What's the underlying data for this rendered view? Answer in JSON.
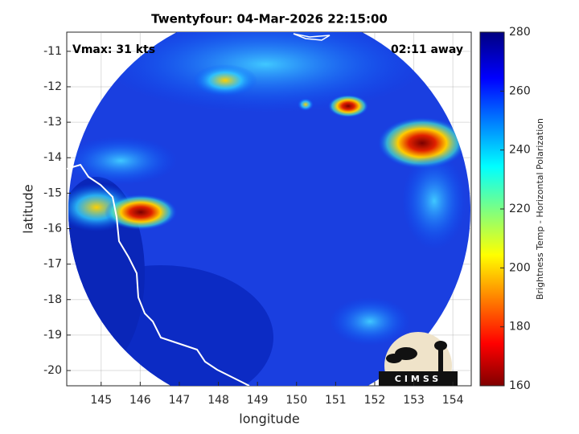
{
  "chart_data": {
    "type": "map",
    "title": "Twentyfour: 04-Mar-2026 22:15:00",
    "annotations": [
      "Vmax: 31 kts",
      "02:11 away"
    ],
    "xlabel": "longitude",
    "ylabel": "latitude",
    "xlim": [
      144.12,
      154.47
    ],
    "ylim": [
      -20.43,
      -10.46
    ],
    "xticks": [
      145,
      146,
      147,
      148,
      149,
      150,
      151,
      152,
      153,
      154
    ],
    "yticks": [
      -11,
      -12,
      -13,
      -14,
      -15,
      -16,
      -17,
      -18,
      -19,
      -20
    ],
    "grid": true,
    "colorbar": {
      "label": "Brightness Temp - Horizontal Polarization",
      "lim": [
        160,
        280
      ],
      "ticks": [
        160,
        180,
        200,
        220,
        240,
        260,
        280
      ],
      "colormap": "jet"
    },
    "logo": "CIMSS"
  }
}
